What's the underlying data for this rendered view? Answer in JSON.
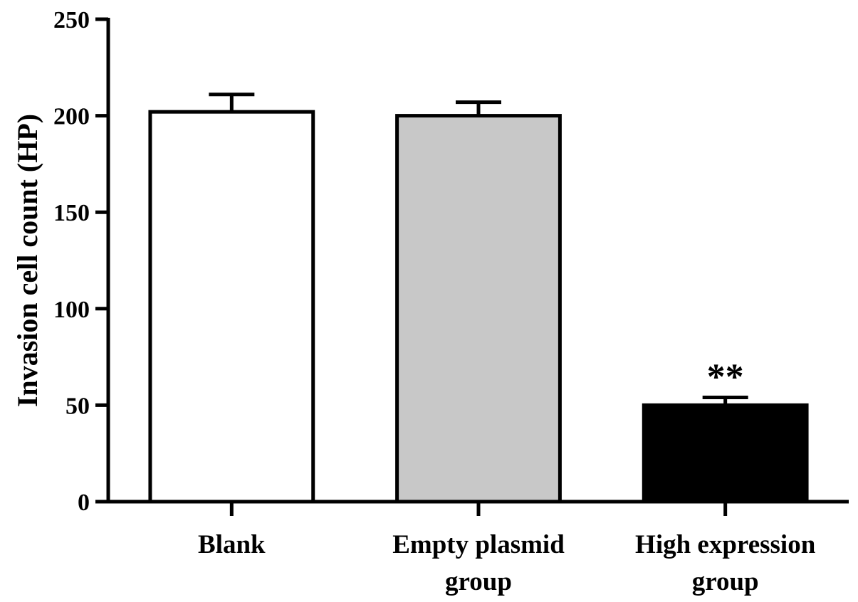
{
  "chart_data": {
    "type": "bar",
    "categories": [
      [
        "Blank"
      ],
      [
        "Empty plasmid",
        "group"
      ],
      [
        "High expression",
        "group"
      ]
    ],
    "values": [
      202,
      200,
      50
    ],
    "errors": [
      9,
      7,
      4
    ],
    "bar_colors": [
      "#ffffff",
      "#c8c8c8",
      "#000000"
    ],
    "significance": [
      "",
      "",
      "**"
    ],
    "ylabel": "Invasion cell count (HP)",
    "xlabel": "",
    "title": "",
    "ylim": [
      0,
      250
    ],
    "yticks": [
      0,
      50,
      100,
      150,
      200,
      250
    ],
    "grid": false,
    "legend": "none"
  }
}
